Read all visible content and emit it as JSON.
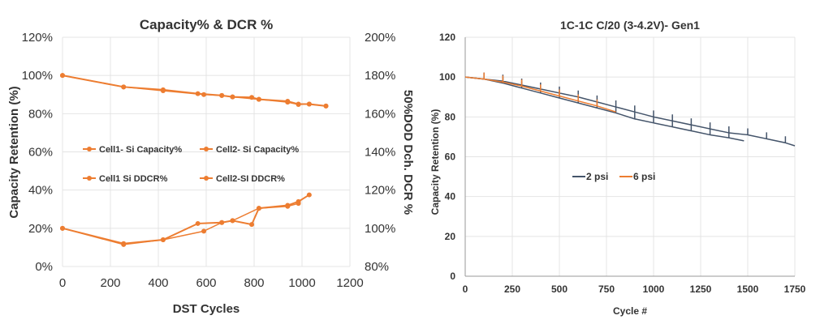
{
  "chart_data": [
    {
      "type": "line",
      "title": "Capacity% & DCR %",
      "xlabel": "DST Cycles",
      "ylabel": "Capacity Retention (%)",
      "y2label": "50%DOD Dch. DCR %",
      "xlim": [
        0,
        1200
      ],
      "ylim": [
        0,
        120
      ],
      "y2lim": [
        80,
        200
      ],
      "xticks": [
        "0",
        "200",
        "400",
        "600",
        "800",
        "1000",
        "1200"
      ],
      "yticks": [
        "0%",
        "20%",
        "40%",
        "60%",
        "80%",
        "100%",
        "120%"
      ],
      "y2ticks": [
        "80%",
        "100%",
        "120%",
        "140%",
        "160%",
        "180%",
        "200%"
      ],
      "grid": true,
      "legend": "center",
      "color": "#ED7D31",
      "series": [
        {
          "name": "Cell1- Si  Capacity%",
          "axis": "left",
          "x": [
            0,
            255,
            420,
            565,
            665,
            710,
            790,
            820,
            940,
            985,
            1030,
            1100
          ],
          "y": [
            100,
            94,
            92.5,
            90.5,
            89.5,
            88.8,
            88.5,
            87.5,
            86.5,
            85,
            85,
            84
          ]
        },
        {
          "name": "Cell2- Si Capacity%",
          "axis": "left",
          "x": [
            0,
            255,
            420,
            590,
            665,
            710,
            820,
            940,
            985,
            1030,
            1100
          ],
          "y": [
            100,
            94,
            92,
            90,
            89.5,
            88.8,
            87.5,
            86,
            84.8,
            85,
            84
          ]
        },
        {
          "name": "Cell1 Si DDCR%",
          "axis": "right",
          "x": [
            0,
            255,
            420,
            565,
            665,
            710,
            790,
            820,
            940,
            985,
            1030
          ],
          "y": [
            100,
            92,
            94,
            102.5,
            103,
            104,
            102,
            110.5,
            112,
            114,
            117.5
          ]
        },
        {
          "name": "Cell2-SI  DDCR%",
          "axis": "right",
          "x": [
            0,
            255,
            420,
            590,
            665,
            710,
            820,
            940,
            985
          ],
          "y": [
            100,
            91.5,
            94,
            98.5,
            103,
            104,
            110.5,
            111.5,
            113
          ]
        }
      ]
    },
    {
      "type": "line",
      "title": "1C-1C C/20 (3-4.2V)- Gen1",
      "xlabel": "Cycle #",
      "ylabel": "Capacity Retention (%)",
      "xlim": [
        0,
        1750
      ],
      "ylim": [
        0,
        120
      ],
      "xticks": [
        "0",
        "250",
        "500",
        "750",
        "1000",
        "1250",
        "1500",
        "1750"
      ],
      "yticks": [
        "0",
        "20",
        "40",
        "60",
        "80",
        "100",
        "120"
      ],
      "grid": true,
      "legend": "center",
      "series": [
        {
          "name": "2 psi",
          "color": "#44546A",
          "x": [
            0,
            100,
            200,
            300,
            400,
            500,
            600,
            700,
            800,
            900,
            1000,
            1100,
            1200,
            1300,
            1400,
            1500,
            1600,
            1700,
            1750
          ],
          "y": [
            100,
            99,
            98,
            96,
            94,
            92,
            90,
            87.5,
            85,
            82.5,
            80,
            78,
            76,
            74,
            72,
            71,
            69,
            67,
            65.5
          ]
        },
        {
          "name": "2 psi",
          "color": "#44546A",
          "x": [
            0,
            100,
            200,
            300,
            400,
            500,
            600,
            700,
            800,
            900,
            1000,
            1100,
            1200,
            1300,
            1400,
            1480
          ],
          "y": [
            100,
            99,
            97,
            94.5,
            92,
            89.5,
            87,
            84.5,
            82,
            79,
            77,
            75,
            73,
            71,
            69.5,
            68
          ]
        },
        {
          "name": "6 psi",
          "color": "#ED7D31",
          "x": [
            0,
            100,
            200,
            300,
            400,
            500,
            600,
            700,
            800
          ],
          "y": [
            100,
            99,
            97.5,
            95.5,
            93,
            90.5,
            88,
            85.5,
            82.5
          ]
        }
      ]
    }
  ]
}
